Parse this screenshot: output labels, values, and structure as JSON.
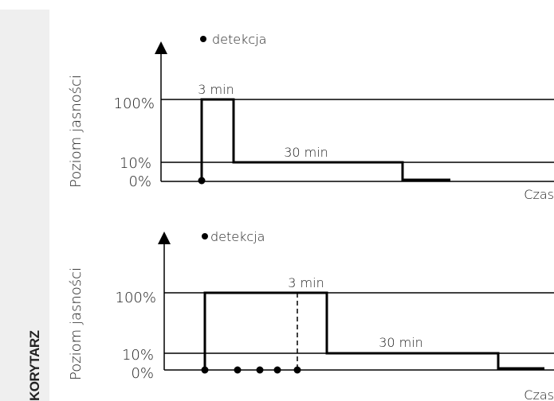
{
  "side_label": "KORYTARZ",
  "panels": [
    {
      "legend": "detekcja",
      "ylabel": "Poziom jasności",
      "tick_100": "100%",
      "tick_10": "10%",
      "tick_0": "0%",
      "xlabel": "Czas",
      "label_a": "3 min",
      "label_b": "30 min"
    },
    {
      "legend": "detekcja",
      "ylabel": "Poziom jasności",
      "tick_100": "100%",
      "tick_10": "10%",
      "tick_0": "0%",
      "xlabel": "Czas",
      "label_a": "3 min",
      "label_b": "30 min"
    }
  ]
}
